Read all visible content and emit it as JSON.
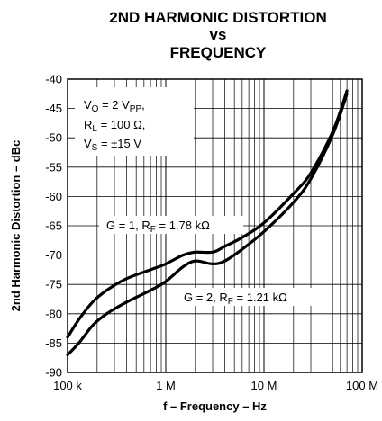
{
  "chart_data": {
    "type": "line",
    "title_lines": [
      "2ND HARMONIC DISTORTION",
      "vs",
      "FREQUENCY"
    ],
    "xlabel": "f – Frequency – Hz",
    "ylabel": "2nd Harmonic Distortion – dBc",
    "x_scale": "log",
    "xlim": [
      100000,
      100000000
    ],
    "ylim": [
      -90,
      -40
    ],
    "x_ticks": [
      {
        "value": 100000,
        "label": "100 k"
      },
      {
        "value": 1000000,
        "label": "1 M"
      },
      {
        "value": 10000000,
        "label": "10 M"
      },
      {
        "value": 100000000,
        "label": "100 M"
      }
    ],
    "y_ticks": [
      -40,
      -45,
      -50,
      -55,
      -60,
      -65,
      -70,
      -75,
      -80,
      -85,
      -90
    ],
    "grid": true,
    "conditions": {
      "vo": {
        "main": "V",
        "sub": "O",
        "rest": " = 2 V",
        "sub2": "PP",
        "rest2": ","
      },
      "rl": {
        "main": "R",
        "sub": "L",
        "rest": " = 100 Ω,"
      },
      "vs": {
        "main": "V",
        "sub": "S",
        "rest": " = ±15 V"
      }
    },
    "series": [
      {
        "label": {
          "pre": "G = 1, R",
          "sub": "F",
          "post": " = 1.78 kΩ"
        },
        "points": [
          [
            100000,
            -84
          ],
          [
            130000,
            -81
          ],
          [
            180000,
            -78
          ],
          [
            250000,
            -76
          ],
          [
            400000,
            -74
          ],
          [
            700000,
            -72.5
          ],
          [
            1000000,
            -71.5
          ],
          [
            1500000,
            -70
          ],
          [
            2000000,
            -69.5
          ],
          [
            3000000,
            -69.5
          ],
          [
            4000000,
            -68.5
          ],
          [
            6000000,
            -67
          ],
          [
            10000000,
            -64.5
          ],
          [
            20000000,
            -59.5
          ],
          [
            30000000,
            -56
          ],
          [
            50000000,
            -49
          ],
          [
            70000000,
            -42
          ]
        ]
      },
      {
        "label": {
          "pre": "G = 2, R",
          "sub": "F",
          "post": " = 1.21 kΩ"
        },
        "points": [
          [
            100000,
            -87
          ],
          [
            130000,
            -85
          ],
          [
            180000,
            -82
          ],
          [
            250000,
            -80
          ],
          [
            400000,
            -78
          ],
          [
            700000,
            -76
          ],
          [
            1000000,
            -74.5
          ],
          [
            1500000,
            -72
          ],
          [
            2000000,
            -71
          ],
          [
            3000000,
            -71.5
          ],
          [
            4000000,
            -71
          ],
          [
            6000000,
            -69
          ],
          [
            10000000,
            -66
          ],
          [
            20000000,
            -61
          ],
          [
            30000000,
            -57
          ],
          [
            50000000,
            -49.5
          ],
          [
            70000000,
            -42.5
          ]
        ]
      }
    ]
  }
}
